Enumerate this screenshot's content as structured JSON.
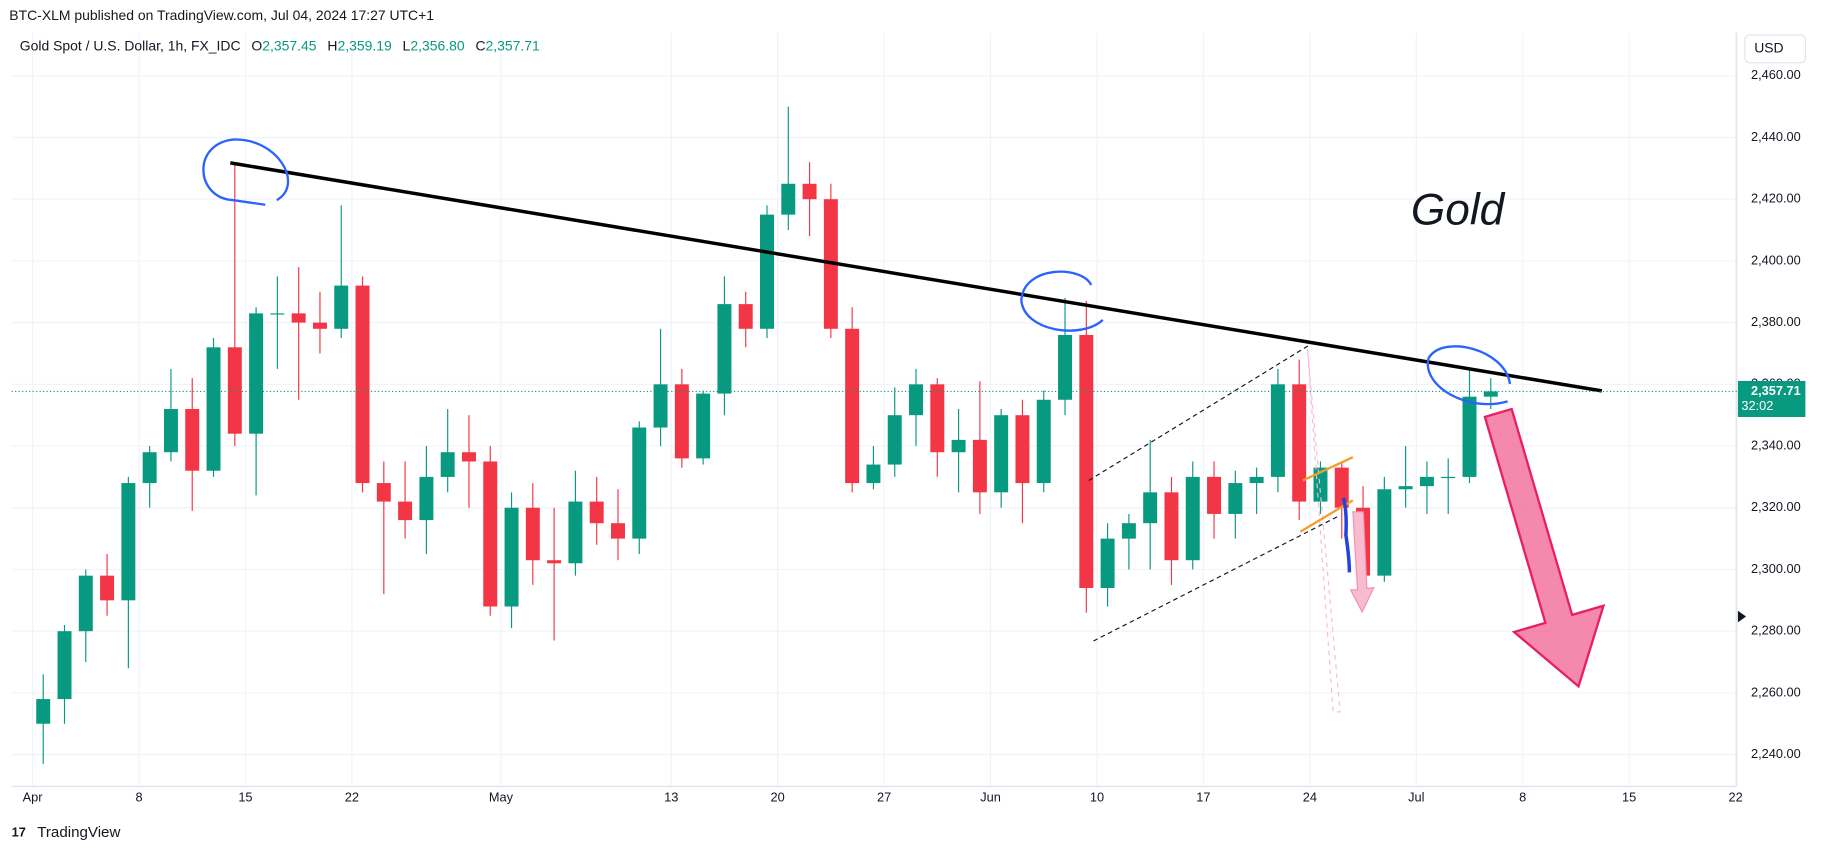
{
  "header": {
    "publisher": "BTC-XLM published on TradingView.com, Jul 04, 2024 17:27 UTC+1",
    "symbol": "Gold Spot / U.S. Dollar, 1h, FX_IDC",
    "ohlc": [
      {
        "label": "O",
        "value": "2,357.45"
      },
      {
        "label": "H",
        "value": "2,359.19"
      },
      {
        "label": "L",
        "value": "2,356.80"
      },
      {
        "label": "C",
        "value": "2,357.71"
      }
    ]
  },
  "currency": "USD",
  "brand": "TradingView",
  "chart_data": {
    "type": "candlestick",
    "annotation": "Gold",
    "up_color": "#089981",
    "down_color": "#f23645",
    "grid": true,
    "x": [
      "2024-04-01",
      "2024-04-02",
      "2024-04-03",
      "2024-04-04",
      "2024-04-05",
      "2024-04-08",
      "2024-04-09",
      "2024-04-10",
      "2024-04-11",
      "2024-04-12",
      "2024-04-15",
      "2024-04-16",
      "2024-04-17",
      "2024-04-18",
      "2024-04-19",
      "2024-04-22",
      "2024-04-23",
      "2024-04-24",
      "2024-04-25",
      "2024-04-26",
      "2024-04-29",
      "2024-04-30",
      "2024-05-01",
      "2024-05-02",
      "2024-05-03",
      "2024-05-06",
      "2024-05-07",
      "2024-05-08",
      "2024-05-09",
      "2024-05-10",
      "2024-05-13",
      "2024-05-14",
      "2024-05-15",
      "2024-05-16",
      "2024-05-17",
      "2024-05-20",
      "2024-05-21",
      "2024-05-22",
      "2024-05-23",
      "2024-05-24",
      "2024-05-27",
      "2024-05-28",
      "2024-05-29",
      "2024-05-30",
      "2024-05-31",
      "2024-06-03",
      "2024-06-04",
      "2024-06-05",
      "2024-06-06",
      "2024-06-07",
      "2024-06-10",
      "2024-06-11",
      "2024-06-12",
      "2024-06-13",
      "2024-06-14",
      "2024-06-17",
      "2024-06-18",
      "2024-06-19",
      "2024-06-20",
      "2024-06-21",
      "2024-06-24",
      "2024-06-25",
      "2024-06-26",
      "2024-06-27",
      "2024-06-28",
      "2024-07-01",
      "2024-07-02",
      "2024-07-03",
      "2024-07-04"
    ],
    "open": [
      2250,
      2258,
      2280,
      2298,
      2290,
      2328,
      2338,
      2352,
      2332,
      2372,
      2344,
      2383,
      2383,
      2380,
      2378,
      2392,
      2328,
      2322,
      2316,
      2330,
      2338,
      2335,
      2288,
      2320,
      2303,
      2302,
      2322,
      2315,
      2310,
      2346,
      2360,
      2336,
      2357,
      2386,
      2378,
      2415,
      2425,
      2420,
      2378,
      2328,
      2334,
      2350,
      2360,
      2338,
      2342,
      2325,
      2350,
      2328,
      2355,
      2376,
      2294,
      2310,
      2315,
      2325,
      2303,
      2330,
      2318,
      2328,
      2330,
      2360,
      2322,
      2333,
      2320,
      2298,
      2326,
      2327,
      2330,
      2330,
      2356
    ],
    "high": [
      2266,
      2282,
      2300,
      2305,
      2330,
      2340,
      2365,
      2362,
      2375,
      2432,
      2385,
      2395,
      2398,
      2390,
      2418,
      2395,
      2335,
      2335,
      2340,
      2352,
      2350,
      2340,
      2325,
      2328,
      2320,
      2332,
      2330,
      2326,
      2348,
      2378,
      2365,
      2358,
      2395,
      2390,
      2418,
      2450,
      2432,
      2425,
      2385,
      2340,
      2359,
      2365,
      2362,
      2352,
      2361,
      2352,
      2355,
      2358,
      2388,
      2387,
      2315,
      2318,
      2342,
      2330,
      2335,
      2335,
      2332,
      2333,
      2365,
      2368,
      2335,
      2335,
      2327,
      2330,
      2340,
      2335,
      2336,
      2365,
      2362
    ],
    "low": [
      2237,
      2250,
      2270,
      2285,
      2268,
      2320,
      2335,
      2319,
      2330,
      2340,
      2324,
      2365,
      2355,
      2370,
      2375,
      2325,
      2292,
      2310,
      2305,
      2325,
      2320,
      2285,
      2281,
      2295,
      2277,
      2298,
      2308,
      2303,
      2305,
      2340,
      2333,
      2334,
      2350,
      2372,
      2375,
      2410,
      2408,
      2375,
      2325,
      2326,
      2330,
      2340,
      2330,
      2325,
      2318,
      2320,
      2315,
      2325,
      2350,
      2286,
      2288,
      2300,
      2300,
      2295,
      2300,
      2310,
      2310,
      2318,
      2325,
      2316,
      2318,
      2310,
      2293,
      2296,
      2320,
      2318,
      2318,
      2328,
      2352
    ],
    "close": [
      2258,
      2280,
      2298,
      2290,
      2328,
      2338,
      2352,
      2332,
      2372,
      2344,
      2383,
      2383,
      2380,
      2378,
      2392,
      2328,
      2322,
      2316,
      2330,
      2338,
      2335,
      2288,
      2320,
      2303,
      2302,
      2322,
      2315,
      2310,
      2346,
      2360,
      2336,
      2357,
      2386,
      2378,
      2415,
      2425,
      2420,
      2378,
      2328,
      2334,
      2350,
      2360,
      2338,
      2342,
      2325,
      2350,
      2328,
      2355,
      2376,
      2294,
      2310,
      2315,
      2325,
      2303,
      2330,
      2318,
      2328,
      2330,
      2360,
      2322,
      2333,
      2320,
      2298,
      2326,
      2327,
      2330,
      2330,
      2356,
      2357.71
    ],
    "ylim": [
      2229.7,
      2474
    ],
    "yticks": [
      {
        "value": 2240,
        "label": "2,240.00"
      },
      {
        "value": 2260,
        "label": "2,260.00"
      },
      {
        "value": 2280,
        "label": "2,280.00"
      },
      {
        "value": 2300,
        "label": "2,300.00"
      },
      {
        "value": 2320,
        "label": "2,320.00"
      },
      {
        "value": 2340,
        "label": "2,340.00"
      },
      {
        "value": 2360,
        "label": "2,360.00"
      },
      {
        "value": 2380,
        "label": "2,380.00"
      },
      {
        "value": 2400,
        "label": "2,400.00"
      },
      {
        "value": 2420,
        "label": "2,420.00"
      },
      {
        "value": 2440,
        "label": "2,440.00"
      },
      {
        "value": 2460,
        "label": "2,460.00"
      }
    ],
    "xticks": [
      {
        "value": "2024-04-01",
        "label": "Apr"
      },
      {
        "value": "2024-04-08",
        "label": "8"
      },
      {
        "value": "2024-04-15",
        "label": "15"
      },
      {
        "value": "2024-04-22",
        "label": "22"
      },
      {
        "value": "2024-05-01",
        "label": "May"
      },
      {
        "value": "2024-05-13",
        "label": "13"
      },
      {
        "value": "2024-05-20",
        "label": "20"
      },
      {
        "value": "2024-05-27",
        "label": "27"
      },
      {
        "value": "2024-06-03",
        "label": "Jun"
      },
      {
        "value": "2024-06-10",
        "label": "10"
      },
      {
        "value": "2024-06-17",
        "label": "17"
      },
      {
        "value": "2024-06-24",
        "label": "24"
      },
      {
        "value": "2024-07-01",
        "label": "Jul"
      },
      {
        "value": "2024-07-08",
        "label": "8"
      },
      {
        "value": "2024-07-15",
        "label": "15"
      },
      {
        "value": "2024-07-22",
        "label": "22"
      }
    ],
    "price_line": {
      "value": 2357.71,
      "label": "2,357.71",
      "countdown": "32:02"
    }
  }
}
